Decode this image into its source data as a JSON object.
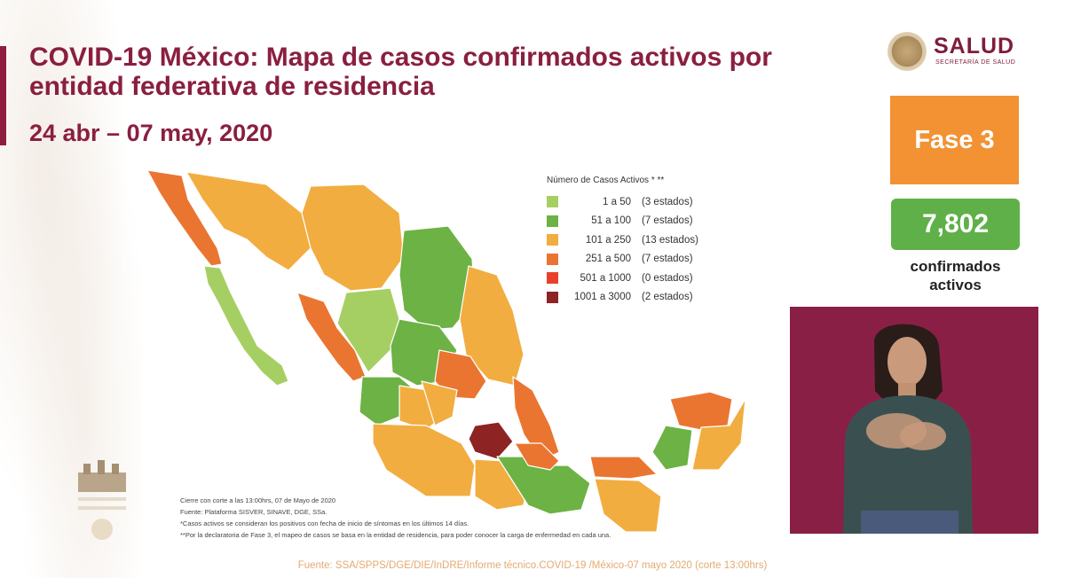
{
  "header": {
    "title": "COVID-19 México: Mapa de casos confirmados activos por entidad federativa de residencia",
    "date_range": "24 abr – 07 may, 2020"
  },
  "logo": {
    "name": "SALUD",
    "subtitle": "SECRETARÍA DE SALUD"
  },
  "phase": {
    "label": "Fase 3",
    "color": "#f29233"
  },
  "active_cases": {
    "value": "7,802",
    "label_line1": "confirmados",
    "label_line2": "activos",
    "color": "#5fb049"
  },
  "legend": {
    "title": "Número de Casos Activos * **",
    "items": [
      {
        "range": "1 a 50",
        "count": "(3 estados)",
        "color": "#a6cf63"
      },
      {
        "range": "51 a 100",
        "count": "(7 estados)",
        "color": "#6cb244"
      },
      {
        "range": "101 a 250",
        "count": "(13 estados)",
        "color": "#f2ad40"
      },
      {
        "range": "251 a 500",
        "count": "(7 estados)",
        "color": "#ea7530"
      },
      {
        "range": "501 a 1000",
        "count": "(0 estados)",
        "color": "#e8412b"
      },
      {
        "range": "1001 a 3000",
        "count": "(2 estados)",
        "color": "#8d2323"
      }
    ]
  },
  "notes": {
    "line1": "Cierre con corte a las 13:00hrs, 07 de Mayo de 2020",
    "line2": "Fuente: Plataforma SISVER, SINAVE, DGE, SSa.",
    "line3": "*Casos activos se consideran los positivos con fecha de inicio de síntomas en los últimos 14 días.",
    "line4": "**Por la declaratoria de Fase 3, el mapeo de casos se basa en la entidad de residencia, para poder conocer la carga de enfermedad en cada una."
  },
  "footer": "Fuente: SSA/SPPS/DGE/DIE/InDRE/Informe técnico.COVID-19 /México-07 mayo 2020 (corte 13:00hrs)",
  "colors": {
    "brand": "#8a1f40",
    "interpreter_bg": "#8a1f45"
  }
}
